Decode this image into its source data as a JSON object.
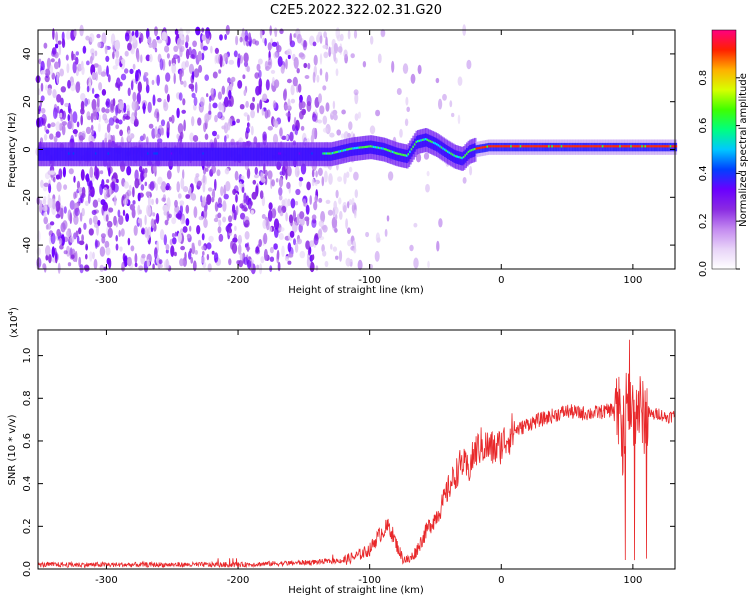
{
  "title": "C2E5.2022.322.02.31.G20",
  "chart_data": [
    {
      "type": "heatmap",
      "xlabel": "Height of straight line (km)",
      "ylabel": "Frequency (Hz)",
      "xlim": [
        -352,
        132
      ],
      "ylim": [
        -50,
        50
      ],
      "xticks": [
        -300,
        -200,
        -100,
        0,
        100
      ],
      "yticks": [
        -40,
        -20,
        0,
        20,
        40
      ],
      "colorbar": {
        "label": "Normalized spectral amplitude",
        "range": [
          0.0,
          1.0
        ],
        "ticks": [
          0.0,
          0.2,
          0.4,
          0.6,
          0.8
        ],
        "colormap": [
          "#ffffff",
          "#e8d4f8",
          "#c48af0",
          "#8a2be2",
          "#6a00ff",
          "#0040ff",
          "#00c8ff",
          "#00ff80",
          "#40ff00",
          "#d8ff00",
          "#ffb000",
          "#ff2000",
          "#ff0080"
        ]
      },
      "ridge": {
        "x": [
          -130,
          -115,
          -100,
          -90,
          -80,
          -72,
          -65,
          -58,
          -50,
          -42,
          -36,
          -30,
          -25,
          -20,
          -10,
          0,
          20,
          60,
          100,
          130
        ],
        "y": [
          -2,
          0,
          1,
          0,
          -2,
          -3,
          3,
          4,
          2,
          -1,
          -3,
          -4,
          -1,
          0,
          1,
          1,
          1,
          1,
          1,
          1
        ]
      }
    },
    {
      "type": "line",
      "xlabel": "Height of straight line (km)",
      "ylabel": "SNR (10 * v/v)",
      "yunit_label": "(x10",
      "yunit_exponent": "4",
      "yunit_close": ")",
      "xlim": [
        -352,
        132
      ],
      "ylim": [
        0,
        1.12
      ],
      "xticks": [
        -300,
        -200,
        -100,
        0,
        100
      ],
      "yticks": [
        0.0,
        0.2,
        0.4,
        0.6,
        0.8,
        1.0
      ],
      "series": [
        {
          "color": "#e8282a",
          "x": [
            -352,
            -300,
            -250,
            -200,
            -150,
            -120,
            -110,
            -100,
            -95,
            -90,
            -85,
            -80,
            -75,
            -70,
            -65,
            -60,
            -55,
            -50,
            -45,
            -40,
            -35,
            -30,
            -25,
            -20,
            -15,
            -10,
            -5,
            0,
            5,
            10,
            15,
            20,
            30,
            40,
            50,
            60,
            70,
            80,
            85,
            90,
            92,
            95,
            100,
            105,
            108,
            110,
            115,
            120,
            125,
            132
          ],
          "y": [
            0.02,
            0.02,
            0.02,
            0.02,
            0.03,
            0.04,
            0.06,
            0.09,
            0.14,
            0.18,
            0.2,
            0.12,
            0.05,
            0.04,
            0.08,
            0.14,
            0.2,
            0.24,
            0.3,
            0.38,
            0.44,
            0.5,
            0.46,
            0.55,
            0.58,
            0.57,
            0.56,
            0.58,
            0.62,
            0.65,
            0.66,
            0.68,
            0.7,
            0.72,
            0.74,
            0.73,
            0.73,
            0.74,
            0.75,
            0.72,
            0.6,
            0.78,
            0.74,
            0.76,
            0.7,
            0.74,
            0.72,
            0.73,
            0.71,
            0.72
          ]
        }
      ]
    }
  ]
}
